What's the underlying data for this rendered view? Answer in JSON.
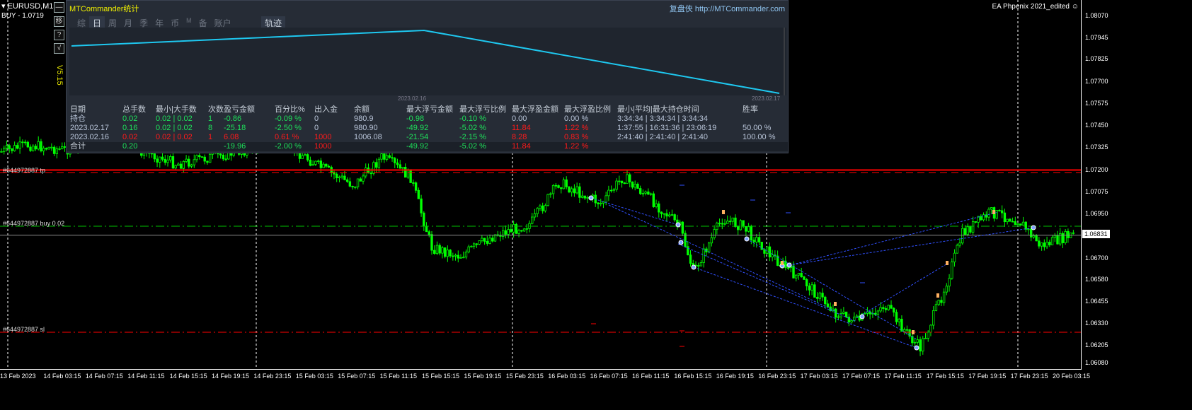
{
  "window": {
    "symbol": "EURUSD,M15",
    "order_info": "BUY - 1.0719",
    "ea_name": "EA Phpenix 2021_edited",
    "smiley_icon": "smiley-icon",
    "version": "V5.15"
  },
  "side_buttons": [
    {
      "label": "—",
      "icon": "minimize-icon"
    },
    {
      "label": "移",
      "icon": "move-icon"
    },
    {
      "label": "?",
      "icon": "help-icon"
    },
    {
      "label": "√",
      "icon": "check-icon"
    }
  ],
  "levels": {
    "tp": "#644972887 tp",
    "buy": "#644972887 buy 0.02",
    "sl": "#644972887 sl"
  },
  "panel": {
    "title": "MTCommander统计",
    "link": "复盘侠 http://MTCommander.com",
    "tabs": [
      "综",
      "日",
      "周",
      "月",
      "季",
      "年",
      "币",
      "M",
      "备",
      "账户"
    ],
    "active_tab": "日",
    "track_tab": "轨迹",
    "mini_chart": {
      "dates": [
        "2023.02.16",
        "2023.02.17"
      ],
      "line_color": "#1ec8f0"
    },
    "table": {
      "headers": [
        "日期",
        "总手数",
        "最小|大手数",
        "次数",
        "盈亏金额",
        "百分比%",
        "出入金",
        "余额",
        "最大浮亏金额",
        "最大浮亏比例",
        "最大浮盈金额",
        "最大浮盈比例",
        "最小|平均|最大持仓时间",
        "胜率"
      ],
      "rows": [
        [
          "持仓",
          "0.02",
          "0.02 | 0.02",
          "1",
          "-0.86",
          "-0.09 %",
          "0",
          "980.9",
          "-0.98",
          "-0.10 %",
          "0.00",
          "0.00 %",
          "3:34:34 | 3:34:34 | 3:34:34",
          ""
        ],
        [
          "2023.02.17",
          "0.16",
          "0.02 | 0.02",
          "8",
          "-25.18",
          "-2.50 %",
          "0",
          "980.90",
          "-49.92",
          "-5.02 %",
          "11.84",
          "1.22 %",
          "1:37:55 | 16:31:36 | 23:06:19",
          "50.00 %"
        ],
        [
          "2023.02.16",
          "0.02",
          "0.02 | 0.02",
          "1",
          "6.08",
          "0.61 %",
          "1000",
          "1006.08",
          "-21.54",
          "-2.15 %",
          "8.28",
          "0.83 %",
          "2:41:40 | 2:41:40 | 2:41:40",
          "100.00 %"
        ]
      ],
      "total": [
        "合计",
        "0.20",
        "",
        "",
        "-19.96",
        "-2.00 %",
        "1000",
        "",
        "-49.92",
        "-5.02 %",
        "11.84",
        "1.22 %",
        "",
        ""
      ]
    }
  },
  "price_axis": [
    "1.08070",
    "1.07945",
    "1.07825",
    "1.07700",
    "1.07575",
    "1.07450",
    "1.07325",
    "1.07200",
    "1.07075",
    "1.06950",
    "1.06831",
    "1.06700",
    "1.06580",
    "1.06455",
    "1.06330",
    "1.06205",
    "1.06080"
  ],
  "current_price": "1.06831",
  "time_axis": [
    "13 Feb 2023",
    "14 Feb 03:15",
    "14 Feb 07:15",
    "14 Feb 11:15",
    "14 Feb 15:15",
    "14 Feb 19:15",
    "14 Feb 23:15",
    "15 Feb 03:15",
    "15 Feb 07:15",
    "15 Feb 11:15",
    "15 Feb 15:15",
    "15 Feb 19:15",
    "15 Feb 23:15",
    "16 Feb 03:15",
    "16 Feb 07:15",
    "16 Feb 11:15",
    "16 Feb 15:15",
    "16 Feb 19:15",
    "16 Feb 23:15",
    "17 Feb 03:15",
    "17 Feb 07:15",
    "17 Feb 11:15",
    "17 Feb 15:15",
    "17 Feb 19:15",
    "17 Feb 23:15",
    "20 Feb 03:15"
  ],
  "colors": {
    "bull": "#00ff00",
    "tp": "#ff0000",
    "sl": "#ff0000",
    "buy_line": "#00c000",
    "bid": "#8c8c8c",
    "trade_line": "#3050ff"
  }
}
